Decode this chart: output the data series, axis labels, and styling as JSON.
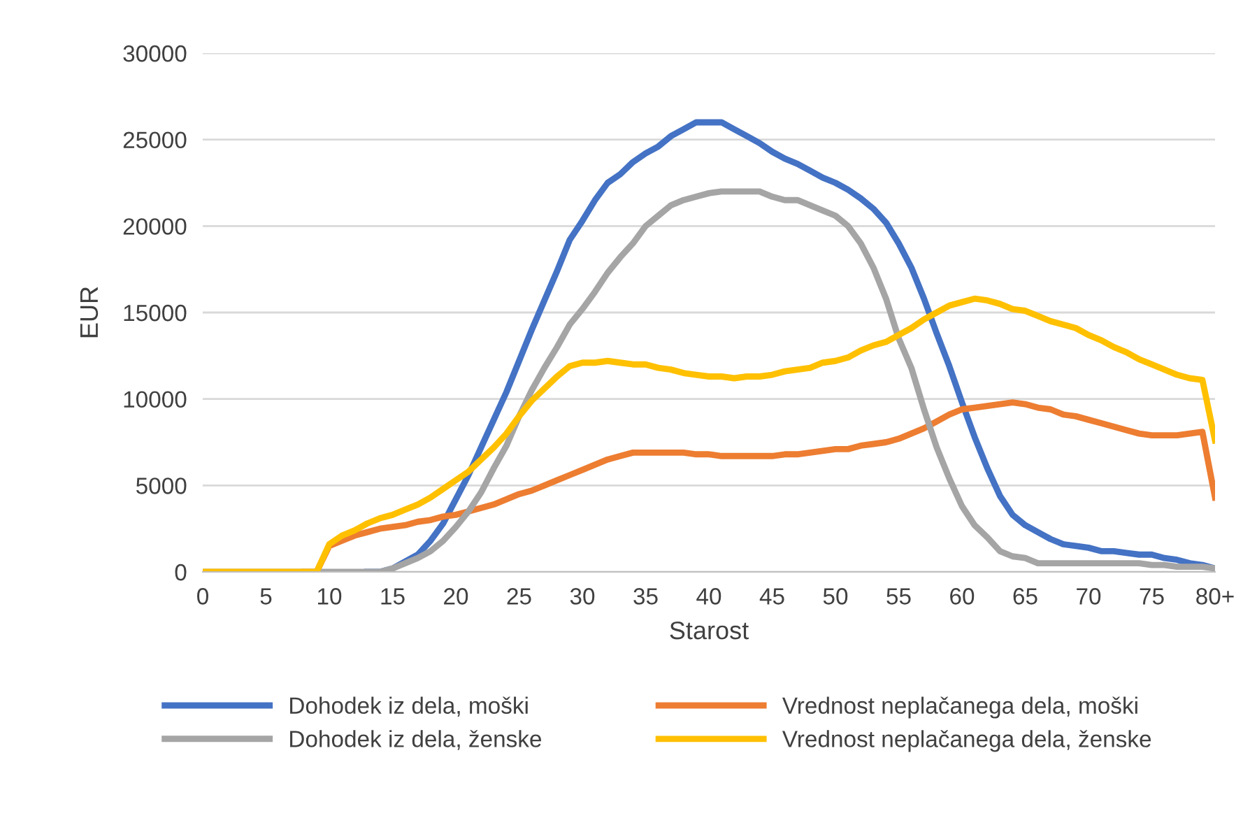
{
  "chart_data": {
    "type": "line",
    "xlabel": "Starost",
    "ylabel": "EUR",
    "x": [
      0,
      1,
      2,
      3,
      4,
      5,
      6,
      7,
      8,
      9,
      10,
      11,
      12,
      13,
      14,
      15,
      16,
      17,
      18,
      19,
      20,
      21,
      22,
      23,
      24,
      25,
      26,
      27,
      28,
      29,
      30,
      31,
      32,
      33,
      34,
      35,
      36,
      37,
      38,
      39,
      40,
      41,
      42,
      43,
      44,
      45,
      46,
      47,
      48,
      49,
      50,
      51,
      52,
      53,
      54,
      55,
      56,
      57,
      58,
      59,
      60,
      61,
      62,
      63,
      64,
      65,
      66,
      67,
      68,
      69,
      70,
      71,
      72,
      73,
      74,
      75,
      76,
      77,
      78,
      79,
      80
    ],
    "xlim": [
      0,
      80
    ],
    "xticks": [
      0,
      5,
      10,
      15,
      20,
      25,
      30,
      35,
      40,
      45,
      50,
      55,
      60,
      65,
      70,
      75,
      {
        "value": 80,
        "label": "80+"
      }
    ],
    "ylim": [
      0,
      30000
    ],
    "yticks": [
      0,
      5000,
      10000,
      15000,
      20000,
      25000,
      30000
    ],
    "grid": "y",
    "legend": "bottom",
    "marker": "none",
    "line_style": "solid",
    "series": [
      {
        "name": "Dohodek iz dela, moški",
        "color": "#4472c4",
        "values": [
          null,
          null,
          null,
          null,
          null,
          null,
          null,
          null,
          null,
          null,
          null,
          null,
          null,
          0,
          0,
          200,
          600,
          1000,
          1800,
          2800,
          4200,
          5600,
          7200,
          8800,
          10400,
          12200,
          14000,
          15700,
          17400,
          19200,
          20300,
          21500,
          22500,
          23000,
          23700,
          24200,
          24600,
          25200,
          25600,
          26000,
          26000,
          26000,
          25600,
          25200,
          24800,
          24300,
          23900,
          23600,
          23200,
          22800,
          22500,
          22100,
          21600,
          21000,
          20200,
          19000,
          17600,
          15800,
          13800,
          11900,
          9800,
          7800,
          6000,
          4400,
          3300,
          2700,
          2300,
          1900,
          1600,
          1500,
          1400,
          1200,
          1200,
          1100,
          1000,
          1000,
          800,
          700,
          500,
          400,
          200
        ]
      },
      {
        "name": "Vrednost neplačanega dela, moški",
        "color": "#ed7d31",
        "values": [
          null,
          null,
          null,
          null,
          null,
          null,
          null,
          null,
          0,
          0,
          1500,
          1800,
          2100,
          2300,
          2500,
          2600,
          2700,
          2900,
          3000,
          3200,
          3300,
          3500,
          3700,
          3900,
          4200,
          4500,
          4700,
          5000,
          5300,
          5600,
          5900,
          6200,
          6500,
          6700,
          6900,
          6900,
          6900,
          6900,
          6900,
          6800,
          6800,
          6700,
          6700,
          6700,
          6700,
          6700,
          6800,
          6800,
          6900,
          7000,
          7100,
          7100,
          7300,
          7400,
          7500,
          7700,
          8000,
          8300,
          8700,
          9100,
          9400,
          9500,
          9600,
          9700,
          9800,
          9700,
          9500,
          9400,
          9100,
          9000,
          8800,
          8600,
          8400,
          8200,
          8000,
          7900,
          7900,
          7900,
          8000,
          8100,
          4300
        ]
      },
      {
        "name": "Dohodek iz dela, ženske",
        "color": "#a5a5a5",
        "values": [
          0,
          0,
          0,
          0,
          0,
          0,
          0,
          0,
          0,
          0,
          0,
          0,
          0,
          0,
          0,
          200,
          500,
          800,
          1200,
          1800,
          2600,
          3500,
          4600,
          6000,
          7300,
          9000,
          10500,
          11800,
          13000,
          14300,
          15200,
          16200,
          17300,
          18200,
          19000,
          20000,
          20600,
          21200,
          21500,
          21700,
          21900,
          22000,
          22000,
          22000,
          22000,
          21700,
          21500,
          21500,
          21200,
          20900,
          20600,
          20000,
          19000,
          17600,
          15800,
          13500,
          11800,
          9400,
          7200,
          5400,
          3800,
          2700,
          2000,
          1200,
          900,
          800,
          500,
          500,
          500,
          500,
          500,
          500,
          500,
          500,
          500,
          400,
          400,
          300,
          300,
          300,
          200
        ]
      },
      {
        "name": "Vrednost neplačanega dela, ženske",
        "color": "#ffc000",
        "values": [
          0,
          0,
          0,
          0,
          0,
          0,
          0,
          0,
          0,
          0,
          1600,
          2100,
          2400,
          2800,
          3100,
          3300,
          3600,
          3900,
          4300,
          4800,
          5300,
          5800,
          6500,
          7200,
          8000,
          9000,
          9900,
          10600,
          11300,
          11900,
          12100,
          12100,
          12200,
          12100,
          12000,
          12000,
          11800,
          11700,
          11500,
          11400,
          11300,
          11300,
          11200,
          11300,
          11300,
          11400,
          11600,
          11700,
          11800,
          12100,
          12200,
          12400,
          12800,
          13100,
          13300,
          13700,
          14100,
          14600,
          15000,
          15400,
          15600,
          15800,
          15700,
          15500,
          15200,
          15100,
          14800,
          14500,
          14300,
          14100,
          13700,
          13400,
          13000,
          12700,
          12300,
          12000,
          11700,
          11400,
          11200,
          11100,
          7600
        ]
      }
    ]
  }
}
